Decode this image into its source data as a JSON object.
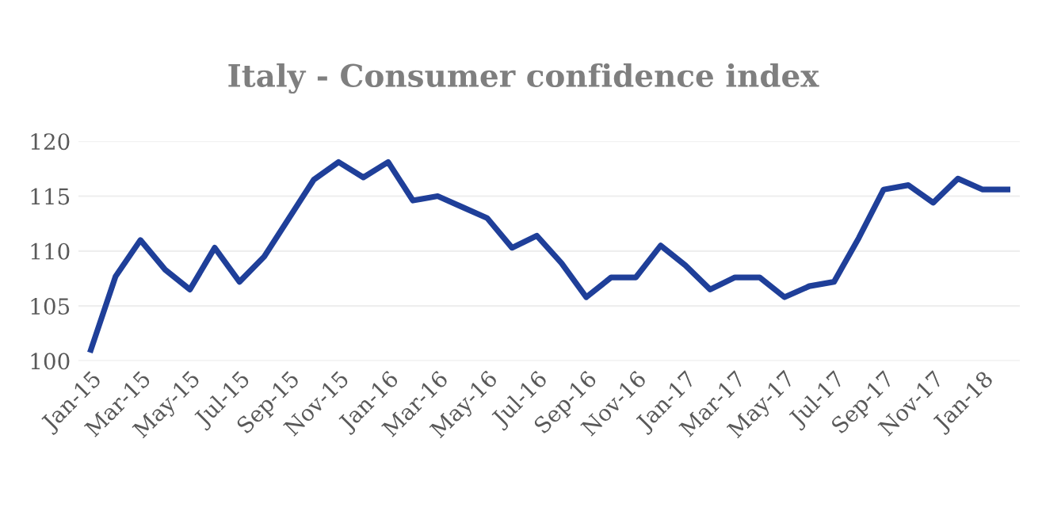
{
  "chart_data": {
    "type": "line",
    "title": "Italy - Consumer confidence index",
    "categories": [
      "Jan-15",
      null,
      "Mar-15",
      null,
      "May-15",
      null,
      "Jul-15",
      null,
      "Sep-15",
      null,
      "Nov-15",
      null,
      "Jan-16",
      null,
      "Mar-16",
      null,
      "May-16",
      null,
      "Jul-16",
      null,
      "Sep-16",
      null,
      "Nov-16",
      null,
      "Jan-17",
      null,
      "Mar-17",
      null,
      "May-17",
      null,
      "Jul-17",
      null,
      "Sep-17",
      null,
      "Nov-17",
      null,
      "Jan-18",
      null
    ],
    "series": [
      {
        "color": "#1f3f99",
        "values": [
          101.0,
          107.7,
          111.0,
          108.3,
          106.5,
          110.3,
          107.2,
          109.5,
          113.0,
          116.5,
          118.1,
          116.7,
          118.1,
          114.6,
          115.0,
          114.0,
          113.0,
          110.3,
          111.4,
          108.9,
          105.8,
          107.6,
          107.6,
          110.5,
          108.7,
          106.5,
          107.6,
          107.6,
          105.8,
          106.8,
          107.2,
          111.2,
          115.6,
          116.0,
          114.4,
          116.6,
          115.6,
          115.6
        ]
      }
    ],
    "ylim": [
      100,
      120
    ],
    "yticks": [
      100,
      105,
      110,
      115,
      120
    ],
    "grid": "y",
    "legend": false,
    "marker": "none",
    "line_style": "solid"
  }
}
